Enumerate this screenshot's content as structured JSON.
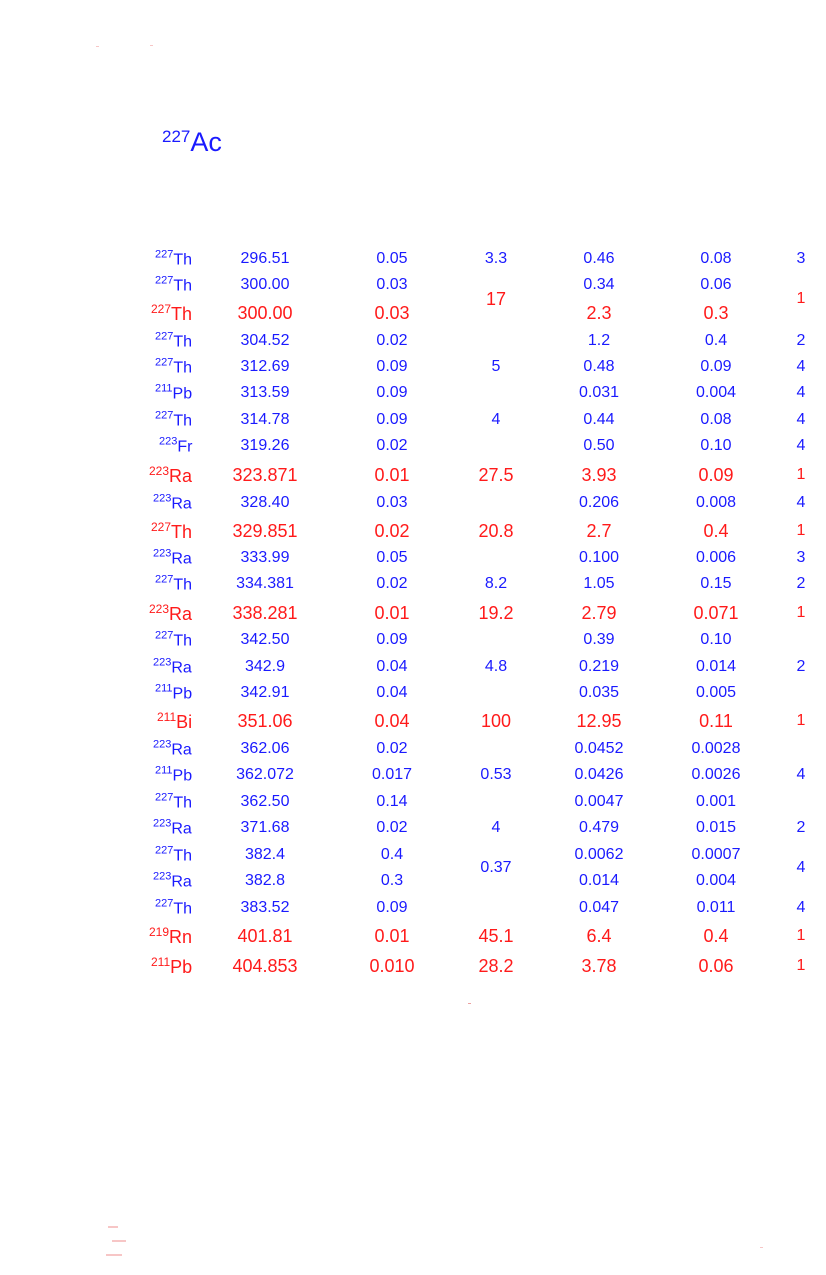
{
  "colors": {
    "blue": "#1a1aff",
    "red": "#ff1a1a"
  },
  "title": {
    "mass": "227",
    "element": "Ac"
  },
  "rows": [
    {
      "mass": "227",
      "el": "Th",
      "energy": "296.51",
      "unc": "0.05",
      "rel": "3.3",
      "inten": "0.46",
      "inten_unc": "0.08",
      "flag": "3",
      "color": "blue"
    },
    {
      "mass": "227",
      "el": "Th",
      "energy": "300.00",
      "unc": "0.03",
      "rel": "17",
      "inten": "0.34",
      "inten_unc": "0.06",
      "flag": "1",
      "color": "blue"
    },
    {
      "mass": "227",
      "el": "Th",
      "energy": "300.00",
      "unc": "0.03",
      "rel": "",
      "inten": "2.3",
      "inten_unc": "0.3",
      "flag": "",
      "color": "red"
    },
    {
      "mass": "227",
      "el": "Th",
      "energy": "304.52",
      "unc": "0.02",
      "rel": "",
      "inten": "1.2",
      "inten_unc": "0.4",
      "flag": "2",
      "color": "blue"
    },
    {
      "mass": "227",
      "el": "Th",
      "energy": "312.69",
      "unc": "0.09",
      "rel": "5",
      "inten": "0.48",
      "inten_unc": "0.09",
      "flag": "4",
      "color": "blue"
    },
    {
      "mass": "211",
      "el": "Pb",
      "energy": "313.59",
      "unc": "0.09",
      "rel": "",
      "inten": "0.031",
      "inten_unc": "0.004",
      "flag": "4",
      "color": "blue"
    },
    {
      "mass": "227",
      "el": "Th",
      "energy": "314.78",
      "unc": "0.09",
      "rel": "4",
      "inten": "0.44",
      "inten_unc": "0.08",
      "flag": "4",
      "color": "blue"
    },
    {
      "mass": "223",
      "el": "Fr",
      "energy": "319.26",
      "unc": "0.02",
      "rel": "",
      "inten": "0.50",
      "inten_unc": "0.10",
      "flag": "4",
      "color": "blue"
    },
    {
      "mass": "223",
      "el": "Ra",
      "energy": "323.871",
      "unc": "0.01",
      "rel": "27.5",
      "inten": "3.93",
      "inten_unc": "0.09",
      "flag": "1",
      "color": "red"
    },
    {
      "mass": "223",
      "el": "Ra",
      "energy": "328.40",
      "unc": "0.03",
      "rel": "",
      "inten": "0.206",
      "inten_unc": "0.008",
      "flag": "4",
      "color": "blue"
    },
    {
      "mass": "227",
      "el": "Th",
      "energy": "329.851",
      "unc": "0.02",
      "rel": "20.8",
      "inten": "2.7",
      "inten_unc": "0.4",
      "flag": "1",
      "color": "red"
    },
    {
      "mass": "223",
      "el": "Ra",
      "energy": "333.99",
      "unc": "0.05",
      "rel": "",
      "inten": "0.100",
      "inten_unc": "0.006",
      "flag": "3",
      "color": "blue"
    },
    {
      "mass": "227",
      "el": "Th",
      "energy": "334.381",
      "unc": "0.02",
      "rel": "8.2",
      "inten": "1.05",
      "inten_unc": "0.15",
      "flag": "2",
      "color": "blue"
    },
    {
      "mass": "223",
      "el": "Ra",
      "energy": "338.281",
      "unc": "0.01",
      "rel": "19.2",
      "inten": "2.79",
      "inten_unc": "0.071",
      "flag": "1",
      "color": "red"
    },
    {
      "mass": "227",
      "el": "Th",
      "energy": "342.50",
      "unc": "0.09",
      "rel": "",
      "inten": "0.39",
      "inten_unc": "0.10",
      "flag": "",
      "color": "blue"
    },
    {
      "mass": "223",
      "el": "Ra",
      "energy": "342.9",
      "unc": "0.04",
      "rel": "4.8",
      "inten": "0.219",
      "inten_unc": "0.014",
      "flag": "2",
      "color": "blue"
    },
    {
      "mass": "211",
      "el": "Pb",
      "energy": "342.91",
      "unc": "0.04",
      "rel": "",
      "inten": "0.035",
      "inten_unc": "0.005",
      "flag": "",
      "color": "blue"
    },
    {
      "mass": "211",
      "el": "Bi",
      "energy": "351.06",
      "unc": "0.04",
      "rel": "100",
      "inten": "12.95",
      "inten_unc": "0.11",
      "flag": "1",
      "color": "red"
    },
    {
      "mass": "223",
      "el": "Ra",
      "energy": "362.06",
      "unc": "0.02",
      "rel": "",
      "inten": "0.0452",
      "inten_unc": "0.0028",
      "flag": "",
      "color": "blue"
    },
    {
      "mass": "211",
      "el": "Pb",
      "energy": "362.072",
      "unc": "0.017",
      "rel": "0.53",
      "inten": "0.0426",
      "inten_unc": "0.0026",
      "flag": "4",
      "color": "blue"
    },
    {
      "mass": "227",
      "el": "Th",
      "energy": "362.50",
      "unc": "0.14",
      "rel": "",
      "inten": "0.0047",
      "inten_unc": "0.001",
      "flag": "",
      "color": "blue"
    },
    {
      "mass": "223",
      "el": "Ra",
      "energy": "371.68",
      "unc": "0.02",
      "rel": "4",
      "inten": "0.479",
      "inten_unc": "0.015",
      "flag": "2",
      "color": "blue"
    },
    {
      "mass": "227",
      "el": "Th",
      "energy": "382.4",
      "unc": "0.4",
      "rel": "0.37",
      "inten": "0.0062",
      "inten_unc": "0.0007",
      "flag": "4",
      "color": "blue"
    },
    {
      "mass": "223",
      "el": "Ra",
      "energy": "382.8",
      "unc": "0.3",
      "rel": "",
      "inten": "0.014",
      "inten_unc": "0.004",
      "flag": "",
      "color": "blue"
    },
    {
      "mass": "227",
      "el": "Th",
      "energy": "383.52",
      "unc": "0.09",
      "rel": "",
      "inten": "0.047",
      "inten_unc": "0.011",
      "flag": "4",
      "color": "blue"
    },
    {
      "mass": "219",
      "el": "Rn",
      "energy": "401.81",
      "unc": "0.01",
      "rel": "45.1",
      "inten": "6.4",
      "inten_unc": "0.4",
      "flag": "1",
      "color": "red"
    },
    {
      "mass": "211",
      "el": "Pb",
      "energy": "404.853",
      "unc": "0.010",
      "rel": "28.2",
      "inten": "3.78",
      "inten_unc": "0.06",
      "flag": "1",
      "color": "red"
    }
  ]
}
